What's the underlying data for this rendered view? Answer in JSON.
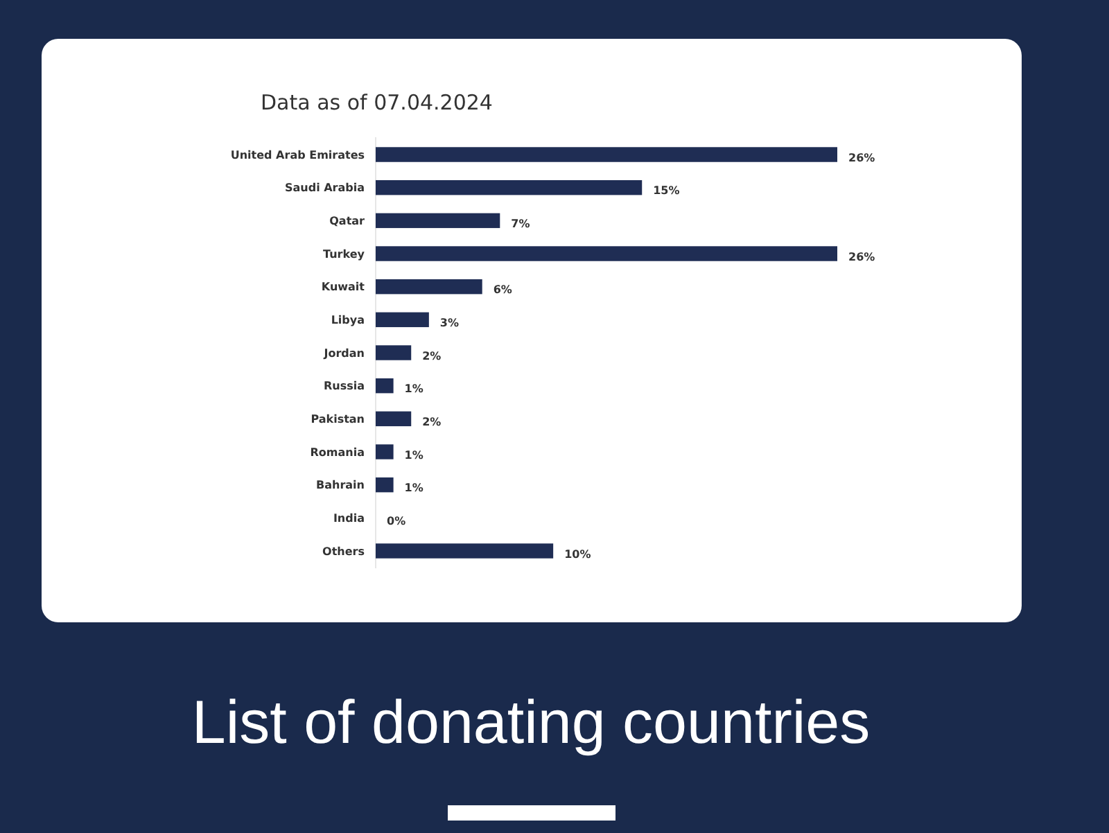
{
  "chart_data": {
    "type": "bar",
    "orientation": "horizontal",
    "title": "Data as of 07.04.2024",
    "subtitle": "List of donating countries",
    "categories": [
      "United Arab Emirates",
      "Saudi Arabia",
      "Qatar",
      "Turkey",
      "Kuwait",
      "Libya",
      "Jordan",
      "Russia",
      "Pakistan",
      "Romania",
      "Bahrain",
      "India",
      "Others"
    ],
    "values": [
      26,
      15,
      7,
      26,
      6,
      3,
      2,
      1,
      2,
      1,
      1,
      0,
      10
    ],
    "value_labels": [
      "26%",
      "15%",
      "7%",
      "26%",
      "6%",
      "3%",
      "2%",
      "1%",
      "2%",
      "1%",
      "1%",
      "0%",
      "10%"
    ],
    "color": "#1f2d54"
  }
}
